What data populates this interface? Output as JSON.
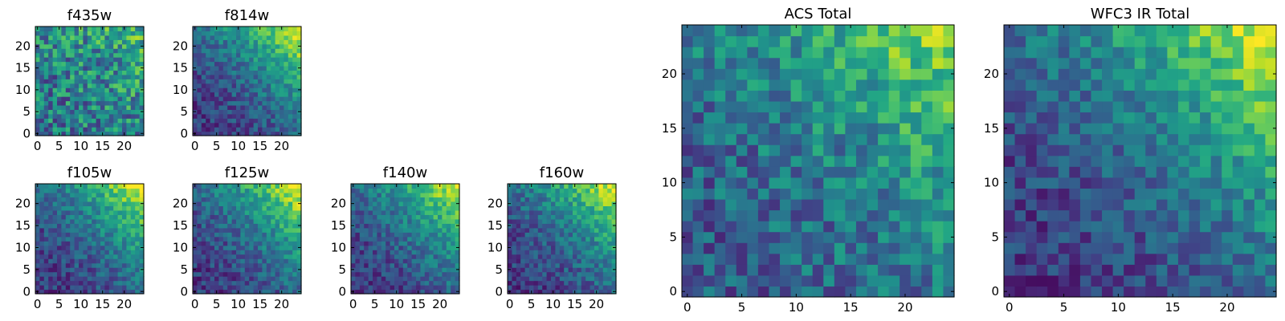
{
  "colormap": "viridis",
  "chart_data": [
    {
      "type": "heatmap",
      "title": "f435w",
      "xticks": [
        "0",
        "5",
        "10",
        "15",
        "20"
      ],
      "yticks": [
        "0",
        "5",
        "10",
        "15",
        "20"
      ],
      "xlim": [
        0,
        25
      ],
      "ylim": [
        0,
        25
      ],
      "grid": false,
      "pattern": "noisy",
      "seed": 11
    },
    {
      "type": "heatmap",
      "title": "f814w",
      "xticks": [
        "0",
        "5",
        "10",
        "15",
        "20"
      ],
      "yticks": [
        "0",
        "5",
        "10",
        "15",
        "20"
      ],
      "xlim": [
        0,
        25
      ],
      "ylim": [
        0,
        25
      ],
      "grid": false,
      "pattern": "gradient-top-right",
      "seed": 23
    },
    {
      "type": "heatmap",
      "title": "f105w",
      "xticks": [
        "0",
        "5",
        "10",
        "15",
        "20"
      ],
      "yticks": [
        "0",
        "5",
        "10",
        "15",
        "20"
      ],
      "xlim": [
        0,
        25
      ],
      "ylim": [
        0,
        25
      ],
      "grid": false,
      "pattern": "gradient-top-right",
      "seed": 37
    },
    {
      "type": "heatmap",
      "title": "f125w",
      "xticks": [
        "0",
        "5",
        "10",
        "15",
        "20"
      ],
      "yticks": [
        "0",
        "5",
        "10",
        "15",
        "20"
      ],
      "xlim": [
        0,
        25
      ],
      "ylim": [
        0,
        25
      ],
      "grid": false,
      "pattern": "gradient-top-right",
      "seed": 41
    },
    {
      "type": "heatmap",
      "title": "f140w",
      "xticks": [
        "0",
        "5",
        "10",
        "15",
        "20"
      ],
      "yticks": [
        "0",
        "5",
        "10",
        "15",
        "20"
      ],
      "xlim": [
        0,
        25
      ],
      "ylim": [
        0,
        25
      ],
      "grid": false,
      "pattern": "gradient-top-right",
      "seed": 53
    },
    {
      "type": "heatmap",
      "title": "f160w",
      "xticks": [
        "0",
        "5",
        "10",
        "15",
        "20"
      ],
      "yticks": [
        "0",
        "5",
        "10",
        "15",
        "20"
      ],
      "xlim": [
        0,
        25
      ],
      "ylim": [
        0,
        25
      ],
      "grid": false,
      "pattern": "gradient-top-right",
      "seed": 67
    },
    {
      "type": "heatmap",
      "title": "ACS Total",
      "xticks": [
        "0",
        "5",
        "10",
        "15",
        "20"
      ],
      "yticks": [
        "0",
        "5",
        "10",
        "15",
        "20"
      ],
      "xlim": [
        0,
        25
      ],
      "ylim": [
        0,
        25
      ],
      "grid": false,
      "pattern": "gradient-top-right-noisy",
      "seed": 79
    },
    {
      "type": "heatmap",
      "title": "WFC3 IR Total",
      "xticks": [
        "0",
        "5",
        "10",
        "15",
        "20"
      ],
      "yticks": [
        "0",
        "5",
        "10",
        "15",
        "20"
      ],
      "xlim": [
        0,
        25
      ],
      "ylim": [
        0,
        25
      ],
      "grid": false,
      "pattern": "gradient-top-right",
      "seed": 97
    }
  ]
}
